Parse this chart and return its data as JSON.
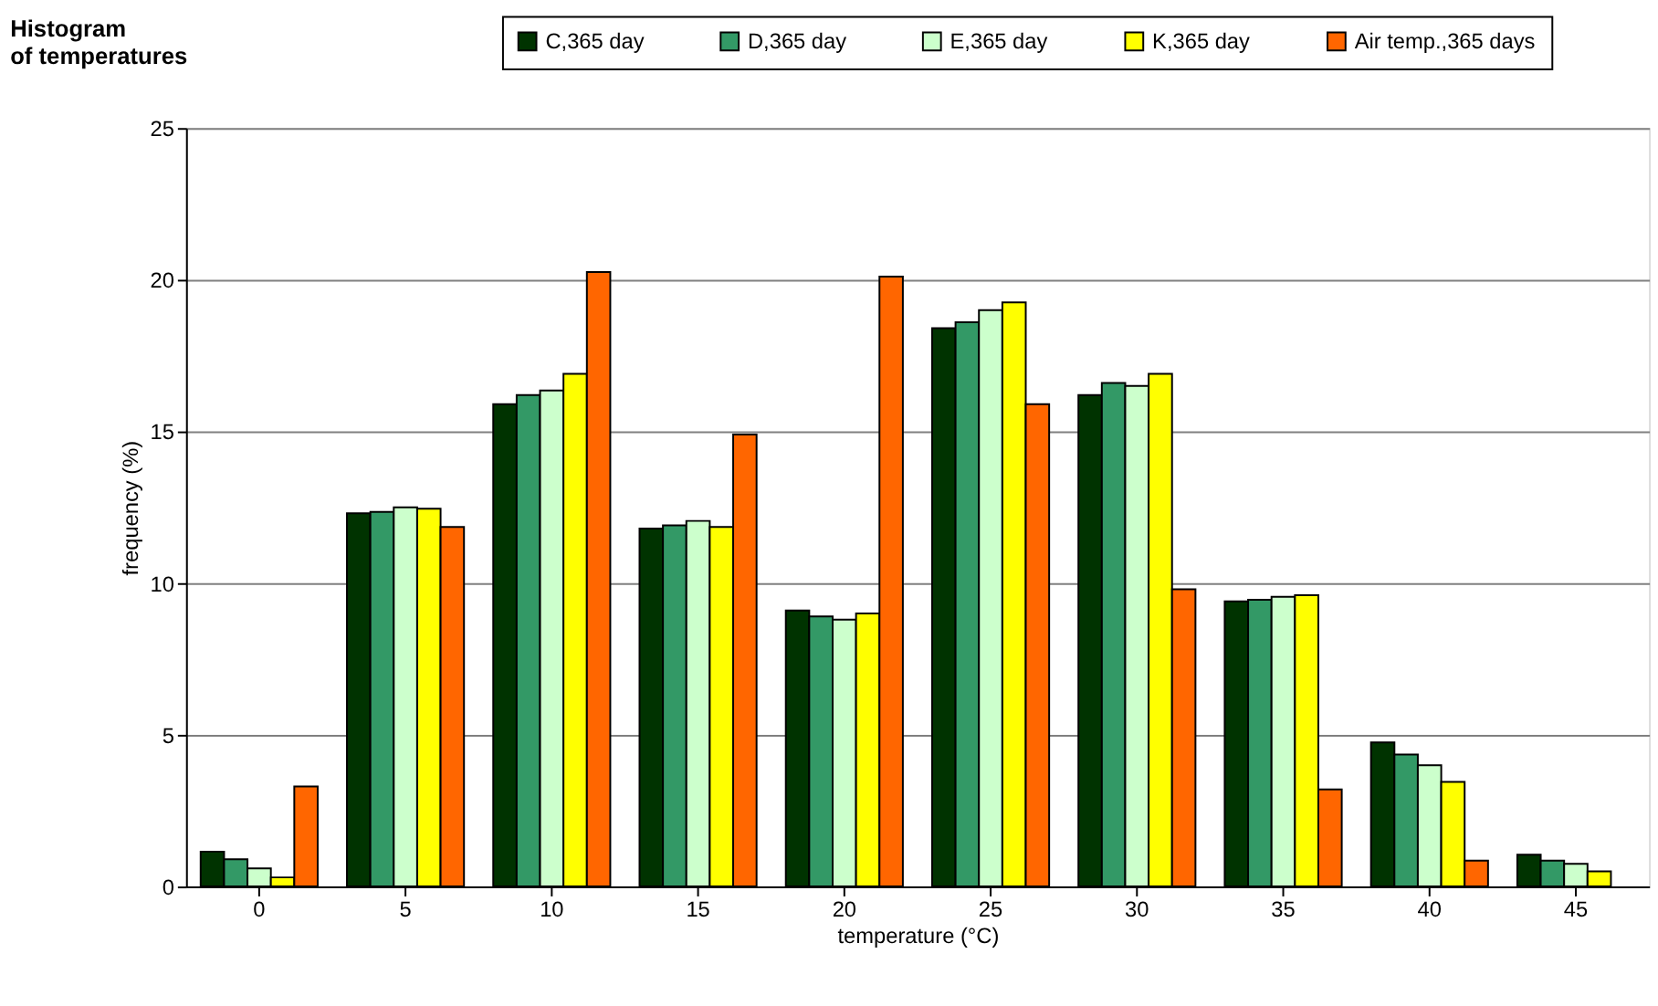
{
  "chart_data": {
    "type": "bar",
    "title": "Histogram of temperatures",
    "xlabel": "temperature (°C)",
    "ylabel": "frequency (%)",
    "categories": [
      "0",
      "5",
      "10",
      "15",
      "20",
      "25",
      "30",
      "35",
      "40",
      "45"
    ],
    "series": [
      {
        "name": "C,365 day",
        "color": "#003300",
        "values": [
          1.15,
          12.3,
          15.9,
          11.8,
          9.1,
          18.4,
          16.2,
          9.4,
          4.75,
          1.05
        ]
      },
      {
        "name": "D,365 day",
        "color": "#339966",
        "values": [
          0.9,
          12.35,
          16.2,
          11.9,
          8.9,
          18.6,
          16.6,
          9.45,
          4.35,
          0.85
        ]
      },
      {
        "name": "E,365 day",
        "color": "#ccffcc",
        "values": [
          0.6,
          12.5,
          16.35,
          12.05,
          8.8,
          19.0,
          16.5,
          9.55,
          4.0,
          0.75
        ]
      },
      {
        "name": "K,365 day",
        "color": "#ffff00",
        "values": [
          0.3,
          12.45,
          16.9,
          11.85,
          9.0,
          19.25,
          16.9,
          9.6,
          3.45,
          0.5
        ]
      },
      {
        "name": "Air temp.,365 days",
        "color": "#ff6600",
        "values": [
          3.3,
          11.85,
          20.25,
          14.9,
          20.1,
          15.9,
          9.8,
          3.2,
          0.85,
          null
        ]
      }
    ],
    "ylim": [
      0,
      25
    ],
    "yticks": [
      0,
      5,
      10,
      15,
      20,
      25
    ],
    "grid": "y",
    "legend": "top right"
  }
}
